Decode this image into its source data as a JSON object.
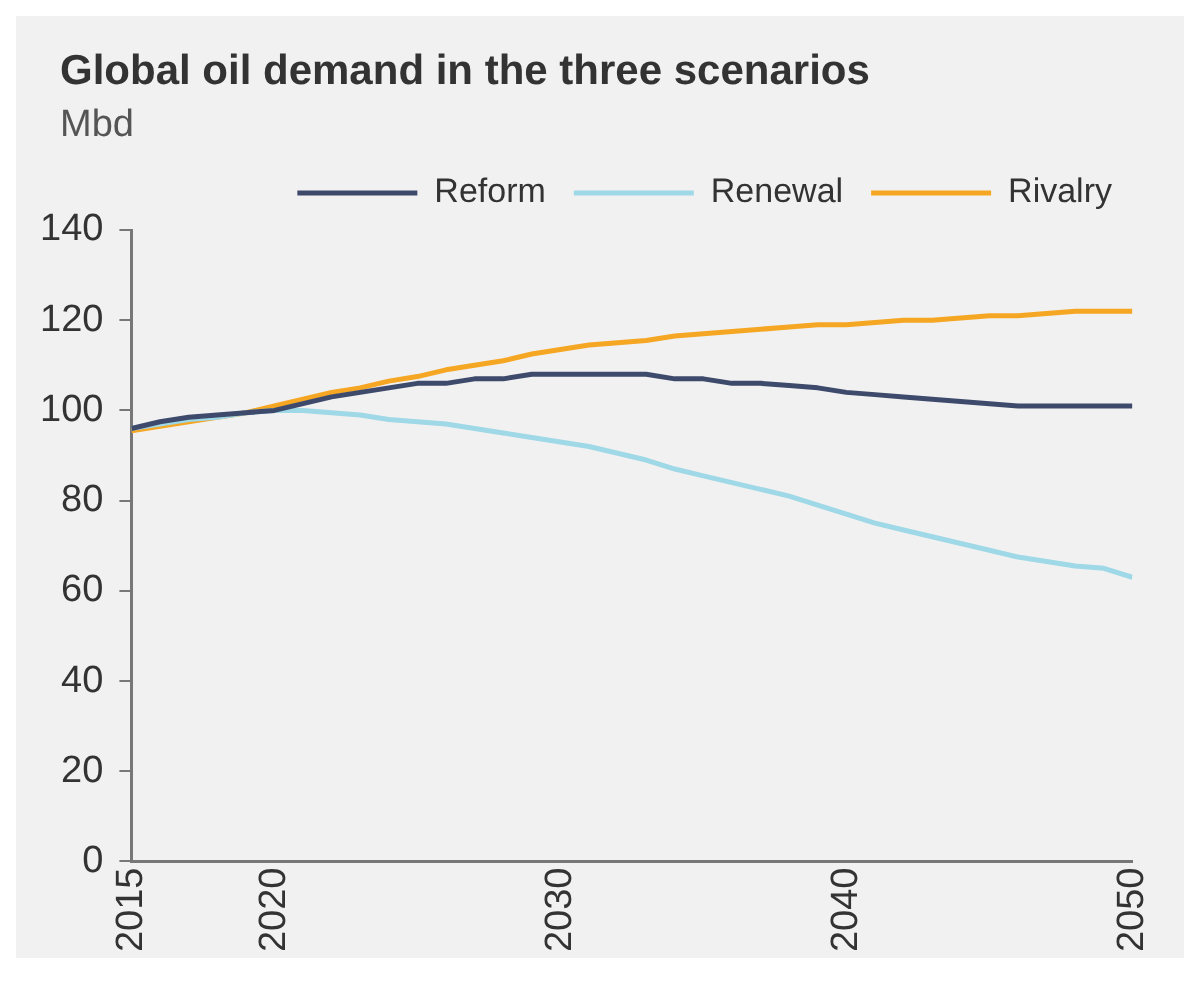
{
  "chart_data": {
    "type": "line",
    "title": "Global oil demand in the three scenarios",
    "subtitle": "Mbd",
    "x": [
      2015,
      2016,
      2017,
      2018,
      2019,
      2020,
      2021,
      2022,
      2023,
      2024,
      2025,
      2026,
      2027,
      2028,
      2029,
      2030,
      2031,
      2032,
      2033,
      2034,
      2035,
      2036,
      2037,
      2038,
      2039,
      2040,
      2041,
      2042,
      2043,
      2044,
      2045,
      2046,
      2047,
      2048,
      2049,
      2050
    ],
    "series": [
      {
        "name": "Reform",
        "color": "#3d4a6b",
        "values": [
          96,
          97.5,
          98.5,
          99,
          99.5,
          100,
          101.5,
          103,
          104,
          105,
          106,
          106,
          107,
          107,
          108,
          108,
          108,
          108,
          108,
          107,
          107,
          106,
          106,
          105.5,
          105,
          104,
          103.5,
          103,
          102.5,
          102,
          101.5,
          101,
          101,
          101,
          101,
          101
        ]
      },
      {
        "name": "Renewal",
        "color": "#9fd8e6",
        "values": [
          96,
          97,
          98,
          98.5,
          99.5,
          100,
          100,
          99.5,
          99,
          98,
          97.5,
          97,
          96,
          95,
          94,
          93,
          92,
          90.5,
          89,
          87,
          85.5,
          84,
          82.5,
          81,
          79,
          77,
          75,
          73.5,
          72,
          70.5,
          69,
          67.5,
          66.5,
          65.5,
          65,
          63
        ]
      },
      {
        "name": "Rivalry",
        "color": "#f5a623",
        "values": [
          95.5,
          96.5,
          97.5,
          98.5,
          99.5,
          101,
          102.5,
          104,
          105,
          106.5,
          107.5,
          109,
          110,
          111,
          112.5,
          113.5,
          114.5,
          115,
          115.5,
          116.5,
          117,
          117.5,
          118,
          118.5,
          119,
          119,
          119.5,
          120,
          120,
          120.5,
          121,
          121,
          121.5,
          122,
          122,
          122
        ]
      }
    ],
    "xlim": [
      2015,
      2050
    ],
    "xticks": [
      2015,
      2020,
      2030,
      2040,
      2050
    ],
    "ylim": [
      0,
      140
    ],
    "yticks": [
      0,
      20,
      40,
      60,
      80,
      100,
      120,
      140
    ],
    "grid": false,
    "legend": "top",
    "marker": "none",
    "line_style": "solid"
  }
}
